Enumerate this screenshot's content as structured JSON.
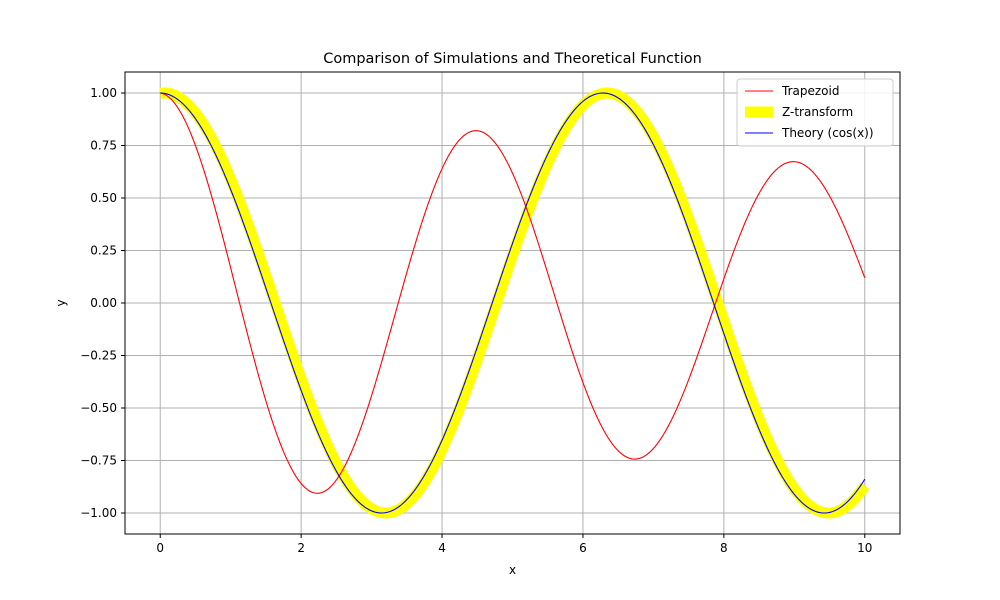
{
  "chart_data": {
    "type": "line",
    "title": "Comparison of Simulations and Theoretical Function",
    "xlabel": "x",
    "ylabel": "y",
    "xlim": [
      -0.5,
      10.5
    ],
    "ylim": [
      -1.1,
      1.1
    ],
    "xticks": [
      0,
      2,
      4,
      6,
      8,
      10
    ],
    "yticks": [
      -1.0,
      -0.75,
      -0.5,
      -0.25,
      0.0,
      0.25,
      0.5,
      0.75,
      1.0
    ],
    "xtick_labels": [
      "0",
      "2",
      "4",
      "6",
      "8",
      "10"
    ],
    "ytick_labels": [
      "−1.00",
      "−0.75",
      "−0.50",
      "−0.25",
      "0.00",
      "0.25",
      "0.50",
      "0.75",
      "1.00"
    ],
    "grid": true,
    "legend_position": "top-right",
    "x_range": [
      0,
      10
    ],
    "series": [
      {
        "name": "Trapezoid",
        "color": "#ff0000",
        "style": "thin",
        "function": "trapezoid-damped-cosine",
        "points": [
          [
            0,
            1.0
          ],
          [
            2.3,
            -0.89
          ],
          [
            4.5,
            0.8
          ],
          [
            6.75,
            -0.71
          ],
          [
            9.0,
            0.64
          ],
          [
            10.0,
            0.08
          ]
        ]
      },
      {
        "name": "Z-transform",
        "color": "#ffff00",
        "style": "thick",
        "function": "cosine-shifted",
        "points": [
          [
            0,
            1.0
          ],
          [
            3.2,
            -1.0
          ],
          [
            6.35,
            1.0
          ],
          [
            9.5,
            -1.0
          ],
          [
            10.0,
            -0.87
          ]
        ]
      },
      {
        "name": "Theory (cos(x))",
        "color": "#0000ff",
        "style": "thin",
        "function": "cos",
        "points": [
          [
            0,
            1.0
          ],
          [
            3.14,
            -1.0
          ],
          [
            6.28,
            1.0
          ],
          [
            9.42,
            -1.0
          ],
          [
            10.0,
            -0.84
          ]
        ]
      }
    ]
  }
}
